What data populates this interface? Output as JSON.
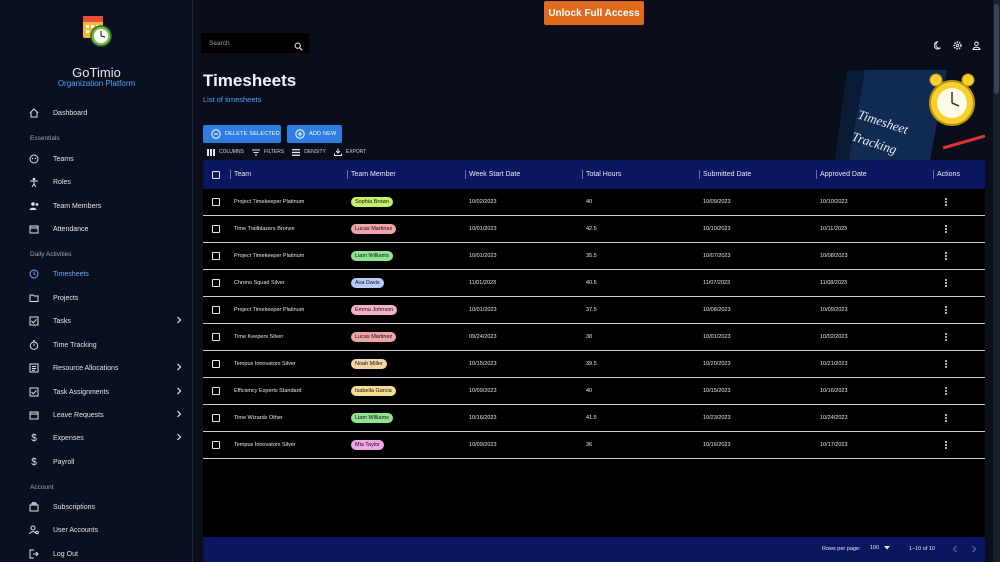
{
  "app": {
    "name": "GoTimio",
    "subtitle": "Organization Platform",
    "unlock_label": "Unlock Full Access"
  },
  "sidebar": {
    "items": [
      {
        "label": "Dashboard",
        "icon": "home-icon"
      },
      {
        "section": "Essentials"
      },
      {
        "label": "Teams",
        "icon": "teams-icon"
      },
      {
        "label": "Roles",
        "icon": "roles-icon"
      },
      {
        "label": "Team Members",
        "icon": "team-members-icon"
      },
      {
        "label": "Attendance",
        "icon": "calendar-icon"
      },
      {
        "section": "Daily Activities"
      },
      {
        "label": "Timesheets",
        "icon": "clock-icon",
        "active": true
      },
      {
        "label": "Projects",
        "icon": "folder-icon"
      },
      {
        "label": "Tasks",
        "icon": "checkbox-icon",
        "expandable": true
      },
      {
        "label": "Time Tracking",
        "icon": "stopwatch-icon"
      },
      {
        "label": "Resource Allocations",
        "icon": "list-icon",
        "expandable": true
      },
      {
        "label": "Task Assignments",
        "icon": "checkbox-icon",
        "expandable": true
      },
      {
        "label": "Leave Requests",
        "icon": "calendar-icon",
        "expandable": true
      },
      {
        "label": "Expenses",
        "icon": "dollar-icon",
        "expandable": true
      },
      {
        "label": "Payroll",
        "icon": "dollar-icon"
      },
      {
        "section": "Account"
      },
      {
        "label": "Subscriptions",
        "icon": "subscriptions-icon"
      },
      {
        "label": "User Accounts",
        "icon": "users-icon"
      },
      {
        "label": "Log Out",
        "icon": "logout-icon"
      }
    ]
  },
  "search": {
    "placeholder": "Search"
  },
  "page": {
    "title": "Timesheets",
    "subtitle": "List of timesheets",
    "hero_text_1": "Timesheet",
    "hero_text_2": "Tracking"
  },
  "actions": {
    "delete_label": "DELETE SELECTED",
    "add_label": "ADD NEW"
  },
  "toolbar": {
    "columns": "COLUMNS",
    "filters": "FILTERS",
    "density": "DENSITY",
    "export": "EXPORT"
  },
  "table": {
    "columns": [
      "Team",
      "Team Member",
      "Week Start Date",
      "Total Hours",
      "Submitted Date",
      "Approved Date",
      "Actions"
    ],
    "rows": [
      {
        "team": "Project Timekeeper Platinum",
        "member": "Sophia Brown",
        "chip": "#c6f06a",
        "week": "10/02/2023",
        "hours": "40",
        "submitted": "10/09/2023",
        "approved": "10/10/2023"
      },
      {
        "team": "Time Trailblazers Bronze",
        "member": "Lucas Martinez",
        "chip": "#f0a3a8",
        "week": "10/01/2023",
        "hours": "42.5",
        "submitted": "10/10/2023",
        "approved": "10/11/2023"
      },
      {
        "team": "Project Timekeeper Platinum",
        "member": "Liam Williams",
        "chip": "#8fe28f",
        "week": "10/01/2023",
        "hours": "35.5",
        "submitted": "10/07/2023",
        "approved": "10/08/2023"
      },
      {
        "team": "Chrono Squad Silver",
        "member": "Ava Davis",
        "chip": "#b7cdf5",
        "week": "11/01/2023",
        "hours": "40.5",
        "submitted": "11/07/2023",
        "approved": "11/08/2023"
      },
      {
        "team": "Project Timekeeper Platinum",
        "member": "Emma Johnson",
        "chip": "#f3b2c8",
        "week": "10/01/2023",
        "hours": "37.5",
        "submitted": "10/08/2023",
        "approved": "10/09/2023"
      },
      {
        "team": "Time Keepers Silver",
        "member": "Lucas Martinez",
        "chip": "#f0a3a8",
        "week": "09/24/2023",
        "hours": "38",
        "submitted": "10/01/2023",
        "approved": "10/02/2023"
      },
      {
        "team": "Tempus Innovators Silver",
        "member": "Noah Miller",
        "chip": "#f5d3a8",
        "week": "10/15/2023",
        "hours": "39.5",
        "submitted": "10/20/2023",
        "approved": "10/21/2023"
      },
      {
        "team": "Efficiency Experts Standard",
        "member": "Isabella Garcia",
        "chip": "#f5dd94",
        "week": "10/09/2023",
        "hours": "40",
        "submitted": "10/15/2023",
        "approved": "10/16/2023"
      },
      {
        "team": "Time Wizards Other",
        "member": "Liam Williams",
        "chip": "#8fe28f",
        "week": "10/16/2023",
        "hours": "41.5",
        "submitted": "10/23/2023",
        "approved": "10/24/2023"
      },
      {
        "team": "Tempus Innovators Silver",
        "member": "Mia Taylor",
        "chip": "#f0a8e8",
        "week": "10/09/2023",
        "hours": "36",
        "submitted": "10/16/2023",
        "approved": "10/17/2023"
      }
    ]
  },
  "footer": {
    "rows_label": "Rows per page:",
    "rows_value": "100",
    "range": "1–10 of 10"
  }
}
